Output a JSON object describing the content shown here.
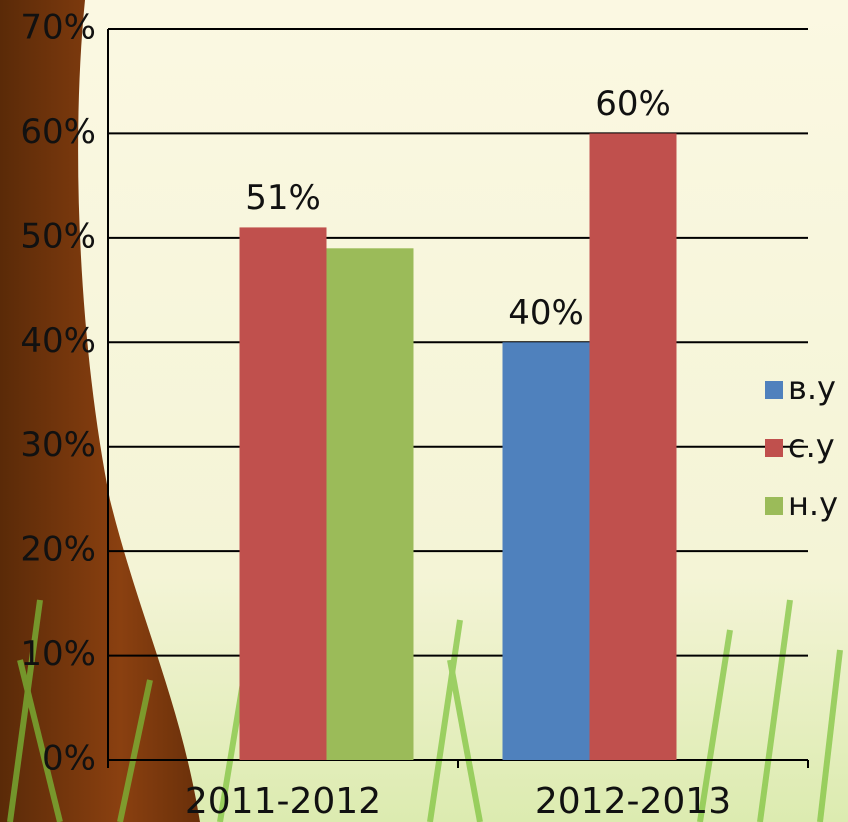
{
  "chart_data": {
    "type": "bar",
    "categories": [
      "2011-2012",
      "2012-2013"
    ],
    "series": [
      {
        "name": "в.у",
        "color": "#4f81bd",
        "values": [
          null,
          40
        ],
        "value_labels": [
          null,
          "40%"
        ]
      },
      {
        "name": "с.у",
        "color": "#c0504d",
        "values": [
          51,
          60
        ],
        "value_labels": [
          "51%",
          "60%"
        ]
      },
      {
        "name": "н.у",
        "color": "#9bbb59",
        "values": [
          49,
          null
        ]
      }
    ],
    "ylim": [
      0,
      70
    ],
    "yticks": [
      {
        "value": 0,
        "label": "0%"
      },
      {
        "value": 10,
        "label": "10%"
      },
      {
        "value": 20,
        "label": "20%"
      },
      {
        "value": 30,
        "label": "30%"
      },
      {
        "value": 40,
        "label": "40%"
      },
      {
        "value": 50,
        "label": "50%"
      },
      {
        "value": 60,
        "label": "60%"
      },
      {
        "value": 70,
        "label": "70%"
      }
    ],
    "grid": true,
    "legend": "right"
  }
}
